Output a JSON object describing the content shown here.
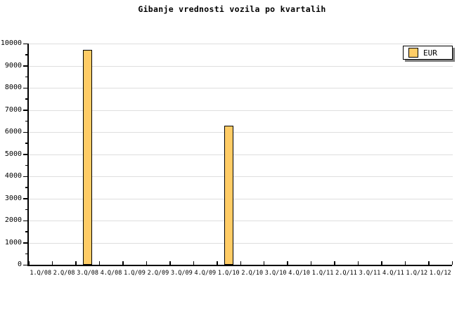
{
  "title": "Gibanje vrednosti vozila po kvartalih",
  "legend": {
    "label": "EUR",
    "swatch_color": "#FFCC66"
  },
  "colors": {
    "background": "#FFFFFF",
    "bar_fill": "#FFCC66",
    "bar_border": "#000000",
    "gridline": "#DEDEDE",
    "axis": "#000000",
    "legend_shadow": "#808080"
  },
  "chart_data": {
    "type": "bar",
    "title": "Gibanje vrednosti vozila po kvartalih",
    "xlabel": "",
    "ylabel": "",
    "categories": [
      "1.Q/08",
      "2.Q/08",
      "3.Q/08",
      "4.Q/08",
      "1.Q/09",
      "2.Q/09",
      "3.Q/09",
      "4.Q/09",
      "1.Q/10",
      "2.Q/10",
      "3.Q/10",
      "4.Q/10",
      "1.Q/11",
      "2.Q/11",
      "3.Q/11",
      "4.Q/11",
      "1.Q/12",
      "1.Q/12"
    ],
    "series": [
      {
        "name": "EUR",
        "color": "#FFCC66",
        "values": [
          null,
          null,
          9700,
          null,
          null,
          null,
          null,
          null,
          6270,
          null,
          null,
          null,
          null,
          null,
          null,
          null,
          null,
          null
        ]
      }
    ],
    "ylim": [
      0,
      10000
    ],
    "ytick_labels": [
      "0",
      "1000",
      "2000",
      "3000",
      "4000",
      "5000",
      "6000",
      "7000",
      "8000",
      "9000",
      "10000"
    ],
    "ytick_interval": 1000,
    "ytick_minor_interval": 500,
    "grid": "horizontal-major",
    "legend_position": "top-right"
  }
}
